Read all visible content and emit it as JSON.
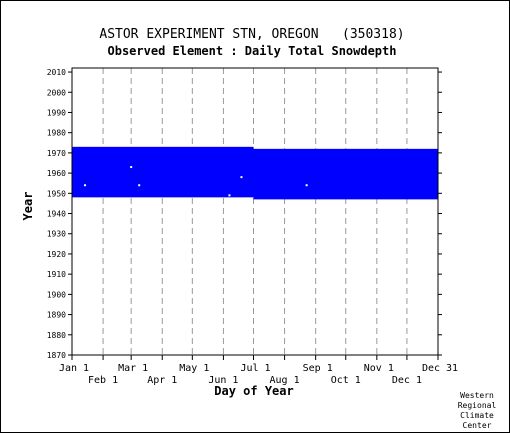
{
  "chart_data": {
    "type": "heatmap",
    "title": "ASTOR EXPERIMENT STN, OREGON   (350318)",
    "subtitle": "Observed Element : Daily Total Snowdepth",
    "xlabel": "Day of Year",
    "ylabel": "Year",
    "x_tick_labels_top_row": [
      "Jan 1",
      "Mar 1",
      "May 1",
      "Jul 1",
      "Sep 1",
      "Nov 1",
      "Dec 31"
    ],
    "x_tick_labels_bottom_row": [
      "Feb 1",
      "Apr 1",
      "Jun 1",
      "Aug 1",
      "Oct 1",
      "Dec 1"
    ],
    "x_tick_days_top_row": [
      1,
      60,
      121,
      182,
      244,
      305,
      366
    ],
    "x_tick_days_bottom_row": [
      32,
      91,
      152,
      213,
      274,
      335
    ],
    "xlim": [
      1,
      366
    ],
    "ylim": [
      1870,
      2012
    ],
    "y_ticks": [
      1870,
      1880,
      1890,
      1900,
      1910,
      1920,
      1930,
      1940,
      1950,
      1960,
      1970,
      1980,
      1990,
      2000,
      2010
    ],
    "grid": true,
    "grid_style": "dashed vertical lines at month starts",
    "series": [
      {
        "color": "#0000ff",
        "blocks": [
          {
            "day_start": 1,
            "day_end": 182,
            "year_start": 1948,
            "year_end": 1973
          },
          {
            "day_start": 182,
            "day_end": 366,
            "year_start": 1947,
            "year_end": 1972
          }
        ],
        "gaps": [
          {
            "day": 14,
            "year": 1954
          },
          {
            "day": 68,
            "year": 1954
          },
          {
            "day": 158,
            "year": 1949
          },
          {
            "day": 170,
            "year": 1958
          },
          {
            "day": 235,
            "year": 1954
          },
          {
            "day": 60,
            "year": 1963
          }
        ]
      }
    ]
  },
  "footer": {
    "credit_lines": [
      "Western",
      "Regional",
      "Climate",
      "Center"
    ]
  }
}
